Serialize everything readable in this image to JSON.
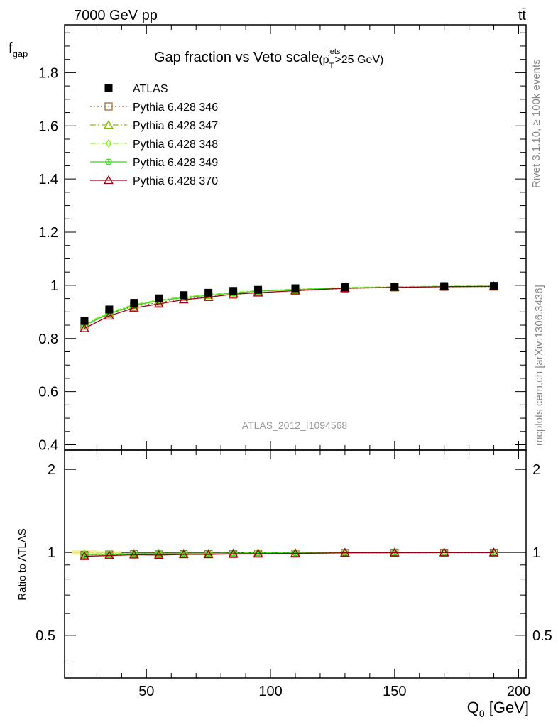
{
  "header": {
    "energy_label": "7000 GeV pp",
    "process_label": "tt̄"
  },
  "side_labels": {
    "rivet": "Rivet 3.1.10, ≥ 100k events",
    "mcplots": "mcplots.cern.ch [arXiv:1306.3436]"
  },
  "watermark": "ATLAS_2012_I1094568",
  "chart_data": {
    "type": "line",
    "title": "Gap fraction vs Veto scale",
    "title_condition": {
      "prefix": "(p",
      "sub": "T",
      "sup": "jets",
      "suffix": ">25 GeV)"
    },
    "ylabel": {
      "main": "f",
      "sub": "gap"
    },
    "xlabel": {
      "main": "Q",
      "sub": "0",
      "unit": " [GeV]"
    },
    "ratio_ylabel": "Ratio to ATLAS",
    "xlim": [
      17,
      203
    ],
    "ylim": [
      0.38,
      1.98
    ],
    "ratio_ylim": [
      0.35,
      2.35
    ],
    "ratio_log": true,
    "x_ticks": [
      50,
      100,
      150,
      200
    ],
    "y_ticks": [
      0.4,
      0.6,
      0.8,
      1.0,
      1.2,
      1.4,
      1.6,
      1.8
    ],
    "y_tick_labels": [
      "0.4",
      "0.6",
      "0.8",
      "1",
      "1.2",
      "1.4",
      "1.6",
      "1.8"
    ],
    "ratio_ticks": [
      0.5,
      1,
      2
    ],
    "ratio_tick_labels": [
      "0.5",
      "1",
      "2"
    ],
    "x": [
      25,
      35,
      45,
      55,
      65,
      75,
      85,
      95,
      110,
      130,
      150,
      170,
      190
    ],
    "data": {
      "name": "ATLAS",
      "values": [
        0.866,
        0.909,
        0.934,
        0.951,
        0.963,
        0.972,
        0.979,
        0.983,
        0.989,
        0.993,
        0.995,
        0.997,
        0.998
      ],
      "color": "#000000"
    },
    "series": [
      {
        "name": "Pythia 6.428 346",
        "color": "#a0703c",
        "marker": "square-open",
        "dash": "2,3",
        "values": [
          0.848,
          0.893,
          0.921,
          0.935,
          0.949,
          0.958,
          0.965,
          0.973,
          0.979,
          0.988,
          0.992,
          0.994,
          0.995
        ]
      },
      {
        "name": "Pythia 6.428 347",
        "color": "#8dbb00",
        "marker": "triangle-open",
        "dash": "8,3,2,3",
        "values": [
          0.852,
          0.895,
          0.925,
          0.943,
          0.955,
          0.963,
          0.972,
          0.979,
          0.984,
          0.991,
          0.994,
          0.996,
          0.997
        ]
      },
      {
        "name": "Pythia 6.428 348",
        "color": "#88ee33",
        "marker": "diamond-open",
        "dash": "8,3,2,3",
        "values": [
          0.855,
          0.898,
          0.928,
          0.945,
          0.957,
          0.965,
          0.974,
          0.98,
          0.986,
          0.992,
          0.995,
          0.997,
          0.998
        ]
      },
      {
        "name": "Pythia 6.428 349",
        "color": "#33dd11",
        "marker": "circle-cross",
        "dash": "",
        "values": [
          0.85,
          0.894,
          0.924,
          0.942,
          0.954,
          0.962,
          0.971,
          0.978,
          0.984,
          0.99,
          0.993,
          0.995,
          0.996
        ]
      },
      {
        "name": "Pythia 6.428 370",
        "color": "#990011",
        "marker": "triangle-open",
        "dash": "",
        "values": [
          0.838,
          0.885,
          0.915,
          0.93,
          0.946,
          0.955,
          0.967,
          0.972,
          0.98,
          0.989,
          0.992,
          0.995,
          0.996
        ]
      }
    ],
    "legend_position": "top-left"
  }
}
